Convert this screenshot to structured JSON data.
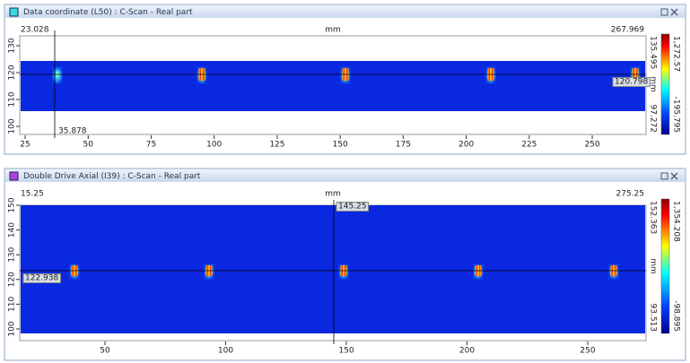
{
  "panels": [
    {
      "title": "Data coordinate (L50) : C-Scan - Real part",
      "x_start": "23.028",
      "x_unit": "mm",
      "x_end": "267.969",
      "x_ticks": [
        25,
        50,
        75,
        100,
        125,
        150,
        175,
        200,
        225,
        250
      ],
      "y_ticks": [
        130,
        120,
        110,
        100
      ],
      "cursor_x": "35.878",
      "cursor_y": "120.798",
      "y_top": "135.495",
      "y_unit": "mm",
      "y_bottom": "97.272",
      "color_max": "1,272.57",
      "color_min": "-195.795"
    },
    {
      "title": "Double Drive Axial (I39) : C-Scan - Real part",
      "x_start": "15.25",
      "x_unit": "mm",
      "x_end": "275.25",
      "x_ticks": [
        50,
        100,
        150,
        200,
        250
      ],
      "y_ticks": [
        150,
        140,
        130,
        120,
        110,
        100
      ],
      "cursor_x": "145.25",
      "cursor_y": "122.938",
      "y_top": "152.363",
      "y_unit": "mm",
      "y_bottom": "93.513",
      "color_max": "1,354.208",
      "color_min": "-98.895"
    }
  ]
}
